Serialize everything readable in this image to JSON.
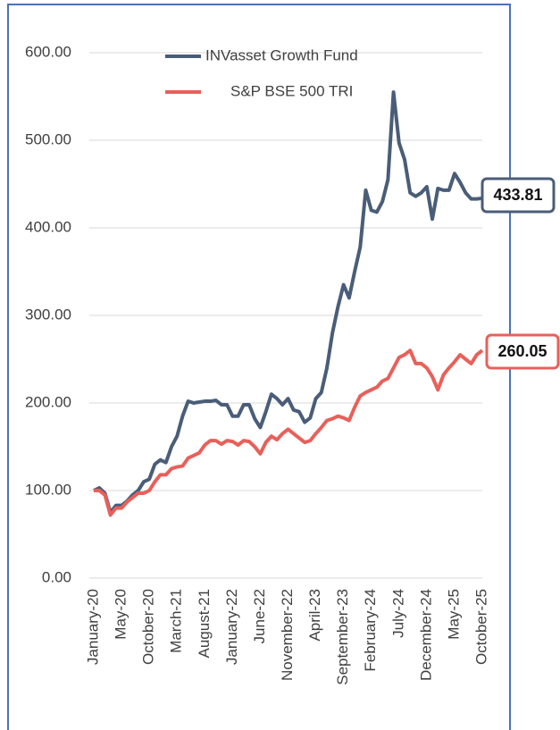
{
  "chart_data": {
    "type": "line",
    "categories": [
      "January-20",
      null,
      null,
      null,
      null,
      "May-20",
      null,
      null,
      null,
      null,
      "October-20",
      null,
      null,
      null,
      null,
      "March-21",
      null,
      null,
      null,
      null,
      "August-21",
      null,
      null,
      null,
      null,
      "January-22",
      null,
      null,
      null,
      null,
      "June-22",
      null,
      null,
      null,
      null,
      "November-22",
      null,
      null,
      null,
      null,
      "April-23",
      null,
      null,
      null,
      null,
      "September-23",
      null,
      null,
      null,
      null,
      "February-24",
      null,
      null,
      null,
      null,
      "July-24",
      null,
      null,
      null,
      null,
      "December-24",
      null,
      null,
      null,
      null,
      "May-25",
      null,
      null,
      null,
      null,
      "October-25"
    ],
    "series": [
      {
        "name": "INVasset Growth Fund",
        "color": "#4a5d78",
        "values": [
          100,
          103,
          97,
          75,
          83,
          83,
          88,
          95,
          100,
          110,
          113,
          130,
          135,
          132,
          150,
          162,
          185,
          202,
          200,
          201,
          202,
          202,
          203,
          198,
          198,
          185,
          185,
          198,
          198,
          182,
          172,
          190,
          210,
          205,
          198,
          205,
          192,
          190,
          178,
          183,
          205,
          212,
          240,
          280,
          310,
          335,
          320,
          350,
          378,
          443,
          420,
          418,
          430,
          455,
          555,
          497,
          478,
          440,
          436,
          440,
          447,
          410,
          445,
          443,
          443,
          462,
          452,
          440,
          433,
          433,
          433.81
        ]
      },
      {
        "name": "S&P BSE 500 TRI",
        "color": "#e8605a",
        "values": [
          100,
          100,
          95,
          72,
          80,
          80,
          87,
          92,
          97,
          97,
          100,
          110,
          118,
          118,
          125,
          127,
          128,
          137,
          140,
          143,
          152,
          157,
          157,
          153,
          157,
          156,
          152,
          157,
          156,
          150,
          142,
          155,
          162,
          158,
          165,
          170,
          165,
          160,
          155,
          157,
          165,
          172,
          180,
          182,
          185,
          183,
          180,
          195,
          208,
          212,
          215,
          218,
          225,
          228,
          240,
          252,
          255,
          260,
          245,
          245,
          240,
          230,
          215,
          232,
          240,
          247,
          255,
          250,
          245,
          255,
          260.05
        ]
      }
    ],
    "ylim": [
      0,
      600
    ],
    "yticks": [
      {
        "value": 0,
        "label": "0.00"
      },
      {
        "value": 100,
        "label": "100.00"
      },
      {
        "value": 200,
        "label": "200.00"
      },
      {
        "value": 300,
        "label": "300.00"
      },
      {
        "value": 400,
        "label": "400.00"
      },
      {
        "value": 500,
        "label": "500.00"
      },
      {
        "value": 600,
        "label": "600.00"
      }
    ],
    "grid": true
  }
}
